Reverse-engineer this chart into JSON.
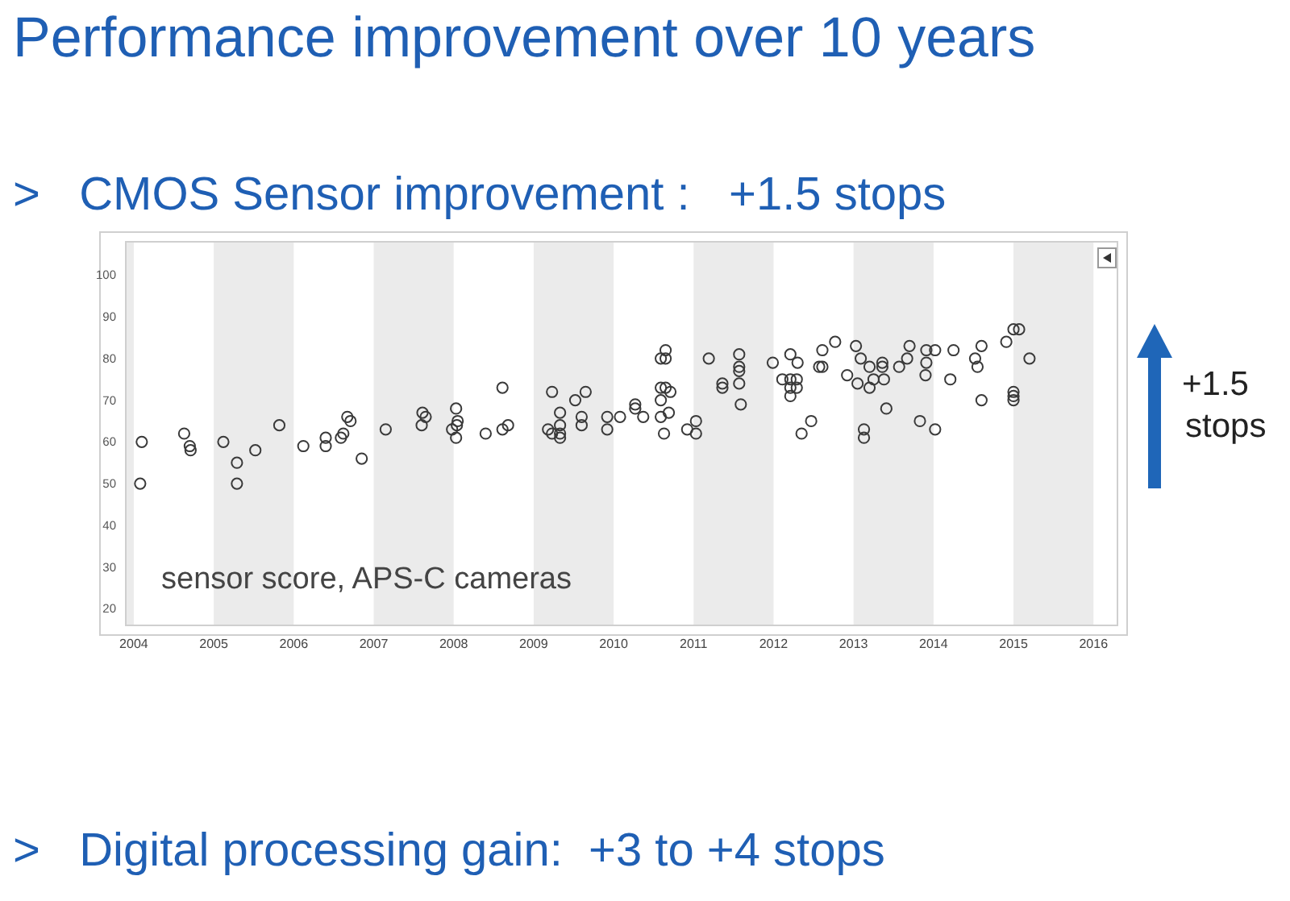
{
  "chart_data": {
    "type": "scatter",
    "title": "Performance improvement over 10 years",
    "subtitle": ">   CMOS Sensor improvement :   +1.5 stops",
    "annotations": [
      "sensor score, APS-C cameras",
      "+1.5 stops",
      ">   Digital processing gain:  +3 to +4 stops"
    ],
    "xlim": [
      2003.9,
      2016.3
    ],
    "xticks": [
      2004,
      2005,
      2006,
      2007,
      2008,
      2009,
      2010,
      2011,
      2012,
      2013,
      2014,
      2015,
      2016
    ],
    "ylim": [
      16,
      108
    ],
    "yticks": [
      20,
      30,
      40,
      50,
      60,
      70,
      80,
      90,
      100
    ],
    "grid": false,
    "marker": "circle",
    "bands": [
      {
        "axis": "x",
        "from": 2003.9,
        "to": 2004,
        "color": "#ebebeb"
      },
      {
        "axis": "x",
        "from": 2005,
        "to": 2006,
        "color": "#ebebeb"
      },
      {
        "axis": "x",
        "from": 2007,
        "to": 2008,
        "color": "#ebebeb"
      },
      {
        "axis": "x",
        "from": 2009,
        "to": 2010,
        "color": "#ebebeb"
      },
      {
        "axis": "x",
        "from": 2011,
        "to": 2012,
        "color": "#ebebeb"
      },
      {
        "axis": "x",
        "from": 2013,
        "to": 2014,
        "color": "#ebebeb"
      },
      {
        "axis": "x",
        "from": 2015,
        "to": 2016,
        "color": "#ebebeb"
      }
    ],
    "series": [
      {
        "color": "#3a3a3a",
        "x": [
          2004.1,
          2004.08,
          2004.63,
          2004.7,
          2004.71,
          2005.12,
          2005.29,
          2005.29,
          2005.52,
          2005.82,
          2006.12,
          2006.4,
          2006.4,
          2006.59,
          2006.62,
          2006.67,
          2006.71,
          2006.85,
          2007.15,
          2007.61,
          2007.6,
          2007.65,
          2008.03,
          2008.05,
          2008.04,
          2007.98,
          2008.03,
          2008.4,
          2008.61,
          2008.61,
          2008.68,
          2009.23,
          2009.18,
          2009.23,
          2009.33,
          2009.33,
          2009.33,
          2009.33,
          2009.52,
          2009.65,
          2009.6,
          2009.6,
          2009.92,
          2009.92,
          2010.08,
          2010.27,
          2010.27,
          2010.37,
          2010.59,
          2010.59,
          2010.63,
          2010.69,
          2010.59,
          2010.65,
          2010.71,
          2010.59,
          2010.65,
          2010.65,
          2010.92,
          2011.03,
          2011.03,
          2011.19,
          2011.36,
          2011.36,
          2011.57,
          2011.57,
          2011.57,
          2011.57,
          2011.59,
          2011.99,
          2012.21,
          2012.3,
          2012.11,
          2012.21,
          2012.29,
          2012.21,
          2012.21,
          2012.29,
          2012.35,
          2012.47,
          2012.57,
          2012.61,
          2012.61,
          2012.77,
          2013.03,
          2013.09,
          2013.2,
          2012.92,
          2013.05,
          2013.2,
          2013.25,
          2013.13,
          2013.13,
          2013.36,
          2013.36,
          2013.38,
          2013.41,
          2013.57,
          2013.67,
          2013.7,
          2013.83,
          2013.91,
          2013.91,
          2013.9,
          2014.02,
          2014.02,
          2014.21,
          2014.25,
          2014.52,
          2014.55,
          2014.6,
          2014.6,
          2014.91,
          2015.0,
          2015.07,
          2015.0,
          2015.0,
          2015.0,
          2015.2
        ],
        "values": [
          60,
          50,
          62,
          59,
          58,
          60,
          55,
          50,
          58,
          64,
          59,
          61,
          59,
          61,
          62,
          66,
          65,
          56,
          63,
          67,
          64,
          66,
          68,
          65,
          64,
          63,
          61,
          62,
          73,
          63,
          64,
          72,
          63,
          62,
          67,
          64,
          62,
          61,
          70,
          72,
          66,
          64,
          66,
          63,
          66,
          69,
          68,
          66,
          70,
          66,
          62,
          67,
          73,
          73,
          72,
          80,
          80,
          82,
          63,
          65,
          62,
          80,
          74,
          73,
          81,
          78,
          77,
          74,
          69,
          79,
          81,
          79,
          75,
          75,
          75,
          73,
          71,
          73,
          62,
          65,
          78,
          78,
          82,
          84,
          83,
          80,
          78,
          76,
          74,
          73,
          75,
          63,
          61,
          79,
          78,
          75,
          68,
          78,
          80,
          83,
          65,
          82,
          79,
          76,
          82,
          63,
          75,
          82,
          80,
          78,
          83,
          70,
          84,
          87,
          87,
          72,
          71,
          70,
          80
        ]
      }
    ]
  }
}
